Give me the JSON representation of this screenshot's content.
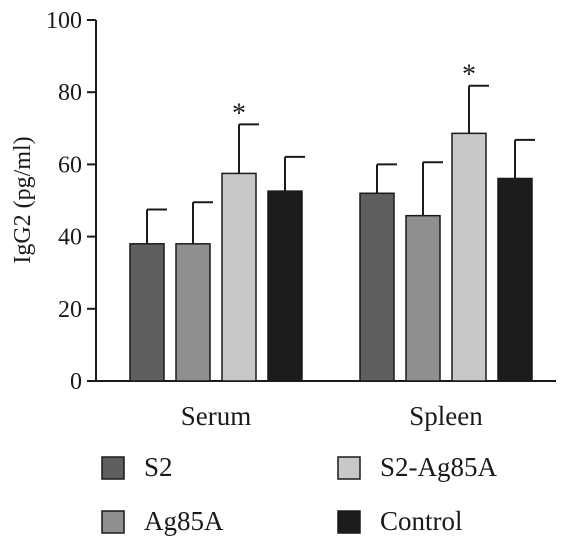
{
  "chart_data": {
    "type": "bar",
    "title": "",
    "xlabel": "",
    "ylabel": "IgG2 (pg/ml)",
    "ylim": [
      0,
      100
    ],
    "yticks": [
      0,
      20,
      40,
      60,
      80,
      100
    ],
    "categories": [
      "Serum",
      "Spleen"
    ],
    "series": [
      {
        "name": "S2",
        "color": "#5f5f5f",
        "values": [
          38,
          52
        ],
        "errors": [
          9.5,
          8
        ]
      },
      {
        "name": "Ag85A",
        "color": "#8f8f8f",
        "values": [
          38,
          45.8
        ],
        "errors": [
          11.5,
          14.8
        ]
      },
      {
        "name": "S2-Ag85A",
        "color": "#c8c8c8",
        "values": [
          57.5,
          68.6
        ],
        "errors": [
          13.6,
          13.2
        ]
      },
      {
        "name": "Control",
        "color": "#1c1c1c",
        "values": [
          52.6,
          56.1
        ],
        "errors": [
          9.5,
          10.7
        ]
      }
    ],
    "annotations": [
      {
        "text": "*",
        "series": "S2-Ag85A",
        "category": "Serum"
      },
      {
        "text": "*",
        "series": "S2-Ag85A",
        "category": "Spleen"
      }
    ],
    "legend": {
      "placement": "bottom",
      "columns": 2
    },
    "grid": false
  }
}
